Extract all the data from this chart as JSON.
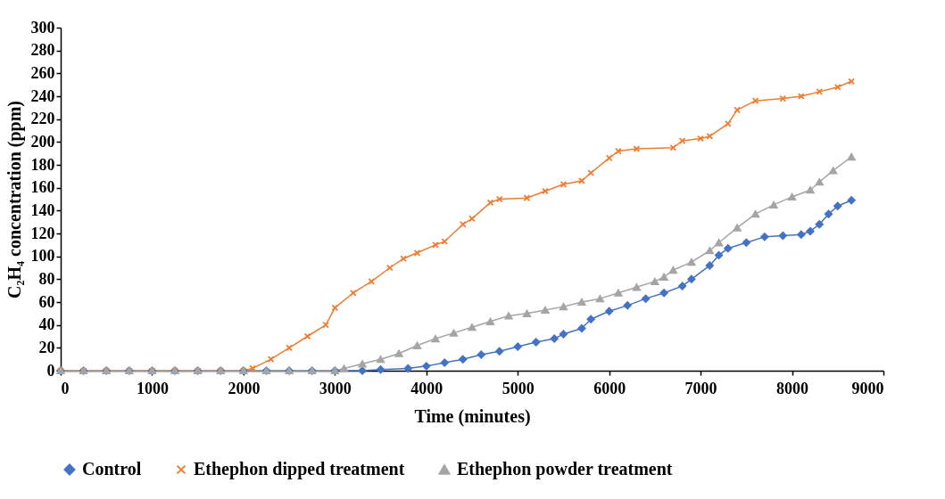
{
  "chart_data": {
    "type": "line",
    "xlabel": "Time (minutes)",
    "ylabel": "C₂H₄ concentration (ppm)",
    "xlim": [
      0,
      9000
    ],
    "xticks": [
      0,
      1000,
      2000,
      3000,
      4000,
      5000,
      6000,
      7000,
      8000,
      9000
    ],
    "ylim": [
      0,
      300
    ],
    "yticks": [
      0,
      20,
      40,
      60,
      80,
      100,
      120,
      140,
      160,
      180,
      200,
      220,
      240,
      260,
      280,
      300
    ],
    "grid": false,
    "legend": "bottom",
    "series": [
      {
        "name": "Control",
        "color": "#4472c4",
        "marker": "diamond",
        "x": [
          0,
          250,
          500,
          750,
          1000,
          1250,
          1500,
          1750,
          2000,
          2250,
          2500,
          2750,
          3000,
          3300,
          3500,
          3800,
          4000,
          4200,
          4400,
          4600,
          4800,
          5000,
          5200,
          5400,
          5500,
          5700,
          5800,
          6000,
          6200,
          6400,
          6600,
          6800,
          6900,
          7100,
          7200,
          7300,
          7500,
          7700,
          7900,
          8100,
          8200,
          8300,
          8400,
          8500,
          8650
        ],
        "values": [
          0,
          0,
          0,
          0,
          0,
          0,
          0,
          0,
          0,
          0,
          0,
          0,
          0,
          0,
          1,
          2,
          4,
          7,
          10,
          14,
          17,
          21,
          25,
          28,
          32,
          37,
          45,
          52,
          57,
          63,
          68,
          74,
          80,
          92,
          101,
          107,
          112,
          117,
          118,
          119,
          122,
          128,
          137,
          144,
          149
        ]
      },
      {
        "name": "Ethephon dipped treatment",
        "color": "#ed7d31",
        "marker": "cross",
        "x": [
          0,
          250,
          500,
          750,
          1000,
          1250,
          1500,
          1750,
          2000,
          2100,
          2300,
          2500,
          2700,
          2900,
          3000,
          3200,
          3400,
          3600,
          3750,
          3900,
          4100,
          4200,
          4400,
          4500,
          4700,
          4800,
          5100,
          5300,
          5500,
          5700,
          5800,
          6000,
          6100,
          6300,
          6700,
          6800,
          7000,
          7100,
          7300,
          7400,
          7600,
          7900,
          8100,
          8300,
          8500,
          8650
        ],
        "values": [
          0,
          0,
          0,
          0,
          0,
          0,
          0,
          0,
          0,
          2,
          10,
          20,
          30,
          40,
          55,
          68,
          78,
          90,
          98,
          103,
          110,
          113,
          128,
          133,
          147,
          150,
          151,
          157,
          163,
          166,
          173,
          186,
          192,
          194,
          195,
          201,
          203,
          205,
          216,
          228,
          236,
          238,
          240,
          244,
          248,
          253
        ]
      },
      {
        "name": "Ethephon powder treatment",
        "color": "#a5a5a5",
        "marker": "triangle",
        "x": [
          0,
          250,
          500,
          750,
          1000,
          1250,
          1500,
          1750,
          2000,
          2250,
          2500,
          2750,
          3000,
          3100,
          3300,
          3500,
          3700,
          3900,
          4100,
          4300,
          4500,
          4700,
          4900,
          5100,
          5300,
          5500,
          5700,
          5900,
          6100,
          6300,
          6500,
          6600,
          6700,
          6900,
          7100,
          7200,
          7400,
          7600,
          7800,
          8000,
          8200,
          8300,
          8450,
          8650
        ],
        "values": [
          0,
          0,
          0,
          0,
          0,
          0,
          0,
          0,
          0,
          0,
          0,
          0,
          0,
          2,
          6,
          10,
          15,
          22,
          28,
          33,
          38,
          43,
          48,
          50,
          53,
          56,
          60,
          63,
          68,
          73,
          78,
          82,
          88,
          95,
          105,
          112,
          125,
          137,
          145,
          152,
          158,
          165,
          175,
          187
        ]
      }
    ]
  }
}
